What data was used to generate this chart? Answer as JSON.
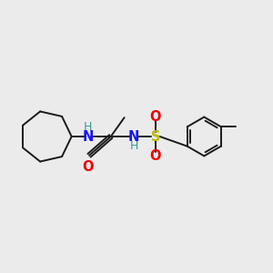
{
  "background_color": "#ebebeb",
  "bond_color": "#1a1a1a",
  "N_color": "#1414ff",
  "O_color": "#ee0000",
  "S_color": "#bbbb00",
  "NH_color": "#3a9a8a",
  "figsize": [
    3.0,
    3.0
  ],
  "dpi": 100,
  "xlim": [
    0,
    10
  ],
  "ylim": [
    0,
    10
  ]
}
